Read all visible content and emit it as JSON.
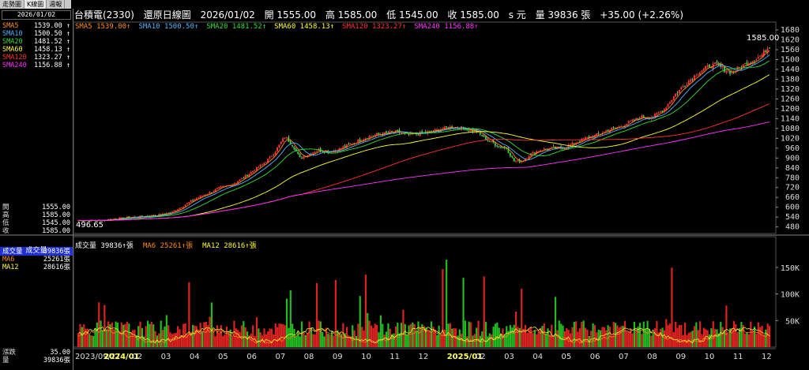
{
  "tabs": [
    "走勢圖",
    "K線圖",
    "週報"
  ],
  "left_panel": {
    "date": "2026/01/02",
    "ma": [
      {
        "label": "SMA5",
        "value": "1539.00",
        "color": "#ff8c1a"
      },
      {
        "label": "SMA10",
        "value": "1500.50",
        "color": "#4fb3ff"
      },
      {
        "label": "SMA20",
        "value": "1481.52",
        "color": "#33dd33"
      },
      {
        "label": "SMA60",
        "value": "1458.13",
        "color": "#ffff33"
      },
      {
        "label": "SMA120",
        "value": "1323.27",
        "color": "#ff3333"
      },
      {
        "label": "SMA240",
        "value": "1156.88",
        "color": "#ff33ff"
      }
    ],
    "ohlc": [
      {
        "label": "開",
        "value": "1555.00"
      },
      {
        "label": "高",
        "value": "1585.00"
      },
      {
        "label": "低",
        "value": "1545.00"
      },
      {
        "label": "收",
        "value": "1585.00"
      }
    ],
    "volume_title": "成交量",
    "volume_rows": [
      {
        "label": "成交量",
        "value": "39836張",
        "color": "#ffffff"
      },
      {
        "label": "MA6",
        "value": "25261張",
        "color": "#ff8c1a"
      },
      {
        "label": "MA12",
        "value": "28616張",
        "color": "#ffff33"
      }
    ],
    "bottom_rows": [
      {
        "label": "漲跌",
        "value": "35.00"
      },
      {
        "label": "量",
        "value": "39836張"
      }
    ]
  },
  "header": {
    "stock": "台積電(2330)",
    "mode": "還原日線圖",
    "date": "2026/01/02",
    "open": "開 1555.00",
    "high": "高 1585.00",
    "low": "低 1545.00",
    "close": "收 1585.00",
    "unit": "s 元",
    "volume": "量 39836 張",
    "change": "+35.00 (+2.26%)"
  },
  "ma_legend": [
    {
      "text": "SMA5 1539.00",
      "color": "#ff8c1a"
    },
    {
      "text": "SMA10 1500.50",
      "color": "#4fb3ff"
    },
    {
      "text": "SMA20 1481.52",
      "color": "#33dd33"
    },
    {
      "text": "SMA60 1458.13",
      "color": "#ffff33"
    },
    {
      "text": "SMA120 1323.27",
      "color": "#ff3333"
    },
    {
      "text": "SMA240 1156.88",
      "color": "#ff33ff"
    }
  ],
  "volume_legend": [
    {
      "text": "成交量 39836",
      "color": "#ffffff"
    },
    {
      "text": "MA6 25261",
      "color": "#ff8c1a"
    },
    {
      "text": "MA12 28616",
      "color": "#ffff33"
    }
  ],
  "chart_data": {
    "type": "line",
    "price_axis": {
      "min": 440,
      "max": 1680,
      "ticks": [
        480,
        540,
        600,
        660,
        720,
        780,
        840,
        900,
        960,
        1020,
        1080,
        1140,
        1200,
        1260,
        1320,
        1380,
        1440,
        1500,
        1560,
        1620,
        1680
      ]
    },
    "volume_axis": {
      "ticks": [
        {
          "value": 50000,
          "label": "50K"
        },
        {
          "value": 100000,
          "label": "100K"
        },
        {
          "value": 150000,
          "label": "150K"
        }
      ]
    },
    "x_labels": [
      "2023/09/27",
      "2024/01",
      "02",
      "03",
      "04",
      "05",
      "06",
      "07",
      "08",
      "09",
      "10",
      "11",
      "12",
      "2025/01",
      "02",
      "03",
      "04",
      "05",
      "06",
      "07",
      "08",
      "09",
      "10",
      "11",
      "12"
    ],
    "annotations": [
      {
        "text": "1585.00"
      },
      {
        "text": "496.65"
      }
    ],
    "close_path": [
      [
        0,
        520
      ],
      [
        12,
        520
      ],
      [
        20,
        530
      ],
      [
        28,
        540
      ],
      [
        36,
        545
      ],
      [
        44,
        555
      ],
      [
        50,
        570
      ],
      [
        56,
        610
      ],
      [
        62,
        650
      ],
      [
        68,
        680
      ],
      [
        72,
        700
      ],
      [
        76,
        720
      ],
      [
        82,
        740
      ],
      [
        88,
        780
      ],
      [
        94,
        830
      ],
      [
        98,
        860
      ],
      [
        102,
        900
      ],
      [
        106,
        960
      ],
      [
        110,
        1030
      ],
      [
        114,
        980
      ],
      [
        118,
        900
      ],
      [
        122,
        920
      ],
      [
        128,
        950
      ],
      [
        134,
        940
      ],
      [
        140,
        960
      ],
      [
        146,
        990
      ],
      [
        152,
        1020
      ],
      [
        158,
        1040
      ],
      [
        164,
        1050
      ],
      [
        170,
        1060
      ],
      [
        176,
        1040
      ],
      [
        182,
        1050
      ],
      [
        188,
        1060
      ],
      [
        194,
        1080
      ],
      [
        200,
        1090
      ],
      [
        206,
        1080
      ],
      [
        212,
        1060
      ],
      [
        218,
        1010
      ],
      [
        224,
        970
      ],
      [
        228,
        960
      ],
      [
        232,
        880
      ],
      [
        236,
        880
      ],
      [
        240,
        920
      ],
      [
        246,
        950
      ],
      [
        252,
        960
      ],
      [
        258,
        960
      ],
      [
        264,
        990
      ],
      [
        270,
        1020
      ],
      [
        276,
        1040
      ],
      [
        282,
        1070
      ],
      [
        288,
        1090
      ],
      [
        294,
        1120
      ],
      [
        300,
        1150
      ],
      [
        306,
        1150
      ],
      [
        312,
        1200
      ],
      [
        318,
        1290
      ],
      [
        324,
        1360
      ],
      [
        330,
        1420
      ],
      [
        336,
        1460
      ],
      [
        340,
        1470
      ],
      [
        344,
        1440
      ],
      [
        348,
        1420
      ],
      [
        352,
        1450
      ],
      [
        356,
        1480
      ],
      [
        360,
        1500
      ],
      [
        364,
        1530
      ],
      [
        368,
        1585
      ]
    ],
    "volume_bars_count": 370,
    "volume_ma": {
      "MA6": 25261,
      "MA12": 28616
    },
    "volume_last": 39836
  }
}
